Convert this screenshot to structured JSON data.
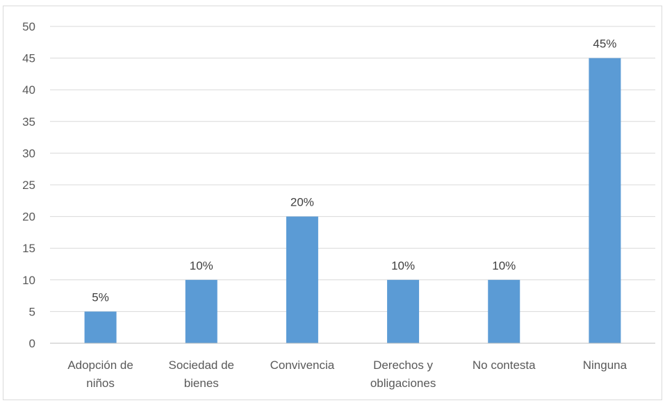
{
  "chart_data": {
    "type": "bar",
    "categories": [
      [
        "Adopción de",
        "niños"
      ],
      [
        "Sociedad de",
        "bienes"
      ],
      [
        "Convivencia"
      ],
      [
        "Derechos y",
        "obligaciones"
      ],
      [
        "No contesta"
      ],
      [
        "Ninguna"
      ]
    ],
    "values": [
      5,
      10,
      20,
      10,
      10,
      45
    ],
    "data_labels": [
      "5%",
      "10%",
      "20%",
      "10%",
      "10%",
      "45%"
    ],
    "y_ticks": [
      0,
      5,
      10,
      15,
      20,
      25,
      30,
      35,
      40,
      45,
      50
    ],
    "ylim": [
      0,
      50
    ],
    "grid": true,
    "legend": "none",
    "bar_color": "#5B9BD5",
    "grid_color": "#d9d9d9"
  }
}
